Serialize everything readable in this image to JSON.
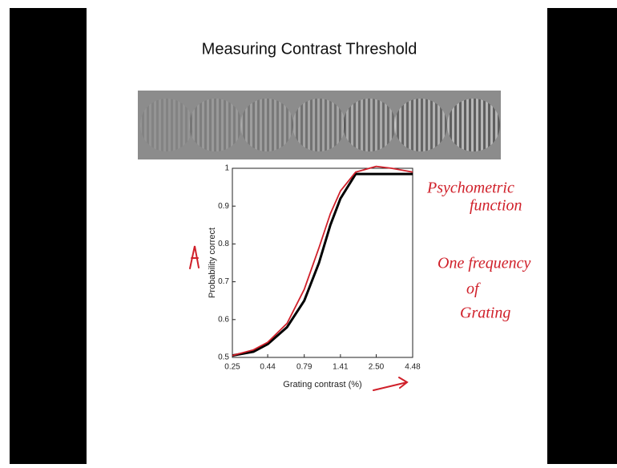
{
  "chart_data": {
    "type": "line",
    "title": "Measuring Contrast Threshold",
    "x_label": "Grating contrast (%)",
    "y_label": "Probability correct",
    "log_x": true,
    "x": [
      0.25,
      0.35,
      0.44,
      0.6,
      0.79,
      1.0,
      1.2,
      1.41,
      1.8,
      2.5,
      3.2,
      4.48
    ],
    "series": [
      {
        "color": "#000000",
        "values": [
          0.505,
          0.515,
          0.535,
          0.58,
          0.65,
          0.75,
          0.85,
          0.92,
          0.985,
          0.985,
          0.985,
          0.985
        ]
      },
      {
        "color": "#d0202a",
        "values": [
          0.505,
          0.52,
          0.54,
          0.59,
          0.68,
          0.79,
          0.88,
          0.94,
          0.99,
          1.005,
          1.0,
          0.99
        ]
      }
    ],
    "xlim": [
      0.25,
      4.48
    ],
    "xticks": [
      0.25,
      0.44,
      0.79,
      1.41,
      {
        "value": 2.5,
        "label": "2.50"
      },
      4.48
    ],
    "ylim": [
      0.5,
      1
    ],
    "yticks": [
      0.5,
      0.6,
      0.7,
      0.8,
      0.9,
      1
    ],
    "annotations": [
      "Psychometric",
      "function",
      "One frequency",
      "of",
      "Grating"
    ]
  }
}
